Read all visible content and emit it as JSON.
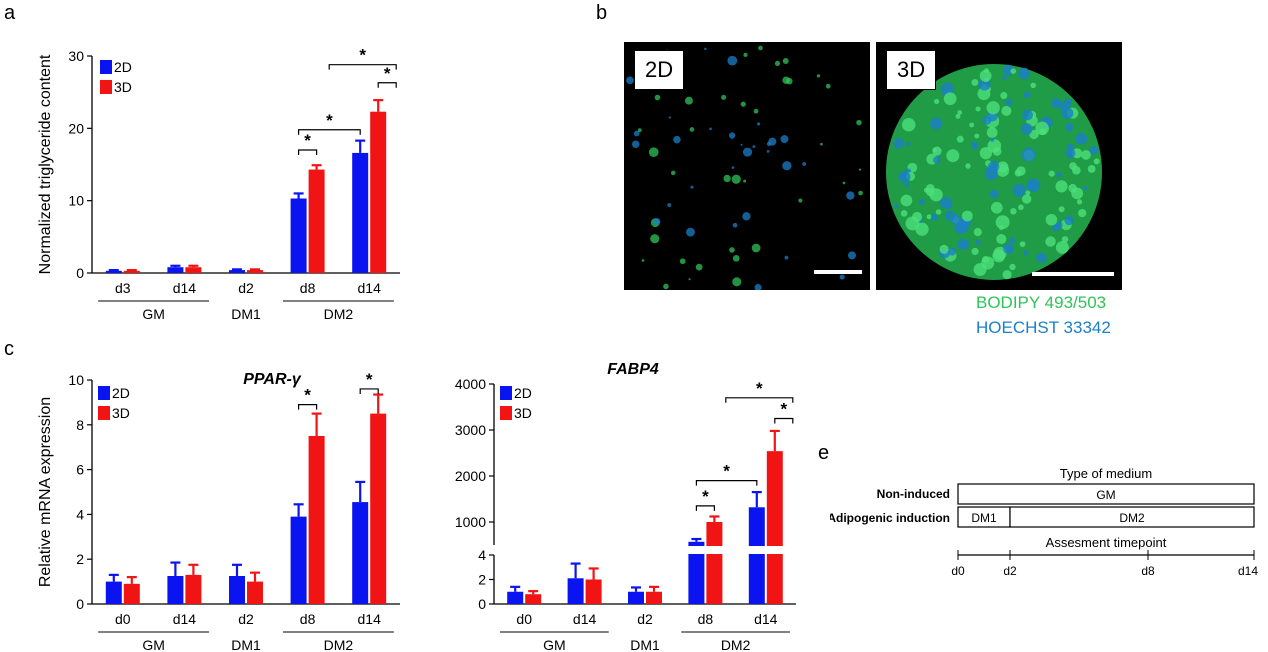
{
  "panels": {
    "a": "a",
    "b": "b",
    "c": "c",
    "e": "e"
  },
  "colors": {
    "2D": "#0a14f0",
    "3D": "#f01414",
    "bodipy": "#2fc45a",
    "hoechst": "#1b7fc9"
  },
  "chart_data": [
    {
      "id": "triglyceride",
      "type": "bar",
      "title": "",
      "ylabel": "Normalized triglyceride content",
      "ylim": [
        0,
        30
      ],
      "yticks": [
        "0",
        "10",
        "20",
        "30"
      ],
      "categories": [
        "d3",
        "d14",
        "d2",
        "d8",
        "d14"
      ],
      "groups": [
        {
          "label": "GM",
          "from": 0,
          "to": 1
        },
        {
          "label": "DM1",
          "from": 2,
          "to": 2
        },
        {
          "label": "DM2",
          "from": 3,
          "to": 4
        }
      ],
      "legend": [
        "2D",
        "3D"
      ],
      "series": [
        {
          "name": "2D",
          "values": [
            0.3,
            0.8,
            0.4,
            10.3,
            16.6
          ],
          "errors": [
            0.1,
            0.2,
            0.1,
            0.7,
            1.7
          ]
        },
        {
          "name": "3D",
          "values": [
            0.3,
            0.8,
            0.4,
            14.3,
            22.3
          ],
          "errors": [
            0.1,
            0.2,
            0.1,
            0.6,
            1.6
          ]
        }
      ],
      "significance": [
        "*",
        "*",
        "*",
        "*"
      ]
    },
    {
      "id": "pparg",
      "type": "bar",
      "title": "PPAR-γ",
      "ylabel": "Relative mRNA expression",
      "ylim": [
        0,
        10
      ],
      "yticks": [
        "0",
        "2",
        "4",
        "6",
        "8",
        "10"
      ],
      "categories": [
        "d0",
        "d14",
        "d2",
        "d8",
        "d14"
      ],
      "groups": [
        {
          "label": "GM",
          "from": 0,
          "to": 1
        },
        {
          "label": "DM1",
          "from": 2,
          "to": 2
        },
        {
          "label": "DM2",
          "from": 3,
          "to": 4
        }
      ],
      "legend": [
        "2D",
        "3D"
      ],
      "series": [
        {
          "name": "2D",
          "values": [
            1.0,
            1.25,
            1.25,
            3.9,
            4.55
          ],
          "errors": [
            0.3,
            0.6,
            0.5,
            0.55,
            0.9
          ]
        },
        {
          "name": "3D",
          "values": [
            0.9,
            1.3,
            1.0,
            7.5,
            8.5
          ],
          "errors": [
            0.3,
            0.45,
            0.4,
            1.0,
            0.85
          ]
        }
      ],
      "significance": [
        "*",
        "*"
      ]
    },
    {
      "id": "fabp4",
      "type": "bar",
      "title": "FABP4",
      "ylabel": "",
      "ylim_lower": [
        0,
        4
      ],
      "ylim_upper": [
        500,
        4000
      ],
      "yticks_lower": [
        "0",
        "2",
        "4"
      ],
      "yticks_upper": [
        "1000",
        "2000",
        "3000",
        "4000"
      ],
      "categories": [
        "d0",
        "d14",
        "d2",
        "d8",
        "d14"
      ],
      "groups": [
        {
          "label": "GM",
          "from": 0,
          "to": 1
        },
        {
          "label": "DM1",
          "from": 2,
          "to": 2
        },
        {
          "label": "DM2",
          "from": 3,
          "to": 4
        }
      ],
      "legend": [
        "2D",
        "3D"
      ],
      "series": [
        {
          "name": "2D",
          "values": [
            1.0,
            2.1,
            1.0,
            570,
            1320
          ],
          "errors": [
            0.4,
            1.2,
            0.35,
            60,
            330
          ]
        },
        {
          "name": "3D",
          "values": [
            0.8,
            2.0,
            1.0,
            1000,
            2540
          ],
          "errors": [
            0.25,
            0.9,
            0.4,
            120,
            440
          ]
        }
      ],
      "significance": [
        "*",
        "*",
        "*",
        "*"
      ]
    }
  ],
  "microscopy": {
    "left_tag": "2D",
    "right_tag": "3D",
    "stain1": "BODIPY 493/503",
    "stain2": "HOECHST 33342"
  },
  "timeline": {
    "type_of_medium": "Type of medium",
    "non_induced_label": "Non-induced",
    "adipogenic_label": "Adipogenic induction",
    "gm_box": "GM",
    "dm1_box": "DM1",
    "dm2_box": "DM2",
    "assessment": "Assesment timepoint",
    "ticks": [
      "d0",
      "d2",
      "d8",
      "d14"
    ]
  }
}
